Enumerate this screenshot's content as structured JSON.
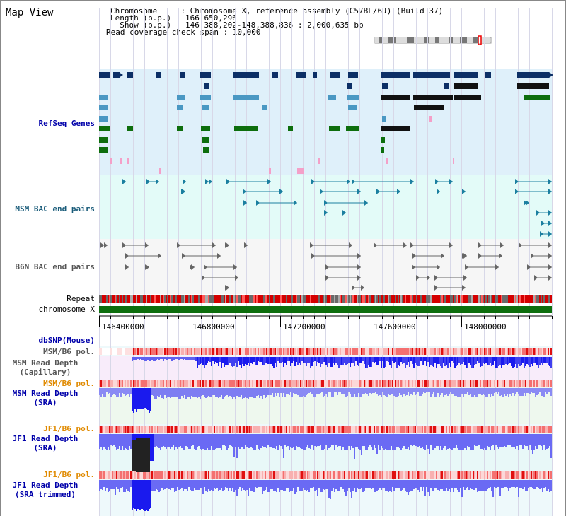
{
  "title": "Map View",
  "info": {
    "chromosome": "Chromosome     : Chromosome X, reference assembly (C57BL/6J) (Build 37)",
    "length": "Length (b.p.) : 166,650,296",
    "show": "  Show (b.p.) : 146,388,202-148,388,836 : 2,000,635 bp",
    "coverage": "Read coverage check span : 10,000"
  },
  "tracks": {
    "refseq": "RefSeq Genes",
    "msm_bac": "MSM BAC end pairs",
    "b6n_bac": "B6N BAC end pairs",
    "repeat": "Repeat",
    "chromosome": "chromosome X",
    "dbsnp": "dbSNP(Mouse)",
    "msm_b6_pol_1": "MSM/B6 pol.",
    "msm_depth_cap_1": "MSM Read Depth",
    "msm_depth_cap_2": "(Capillary)",
    "msm_b6_pol_2": "MSM/B6 pol.",
    "msm_depth_sra_1": "MSM Read Depth",
    "msm_depth_sra_2": "(SRA)",
    "jf1_b6_pol_1": "JF1/B6 pol.",
    "jf1_depth_sra_1": "JF1 Read Depth",
    "jf1_depth_sra_2": "(SRA)",
    "jf1_b6_pol_2": "JF1/B6 pol.",
    "jf1_depth_trim_1": "JF1 Read Depth",
    "jf1_depth_trim_2": "(SRA trimmed)"
  },
  "axis": {
    "ticks": [
      "146400000",
      "146800000",
      "147200000",
      "147600000",
      "148000000"
    ]
  },
  "colors": {
    "refseq_bg": "#dff0fa",
    "msm_bac_bg": "#e3fbf8",
    "b6n_bac_bg": "#f6f6f6",
    "chromosome": "#0d6e0d",
    "navy": "#0c2f66",
    "teal": "#4a98c3",
    "green": "#0d6e0d",
    "pink": "#f4a0c8",
    "blue_depth": "#1a1aee",
    "orange_label": "#e08a00",
    "label_blue": "#0000aa"
  }
}
